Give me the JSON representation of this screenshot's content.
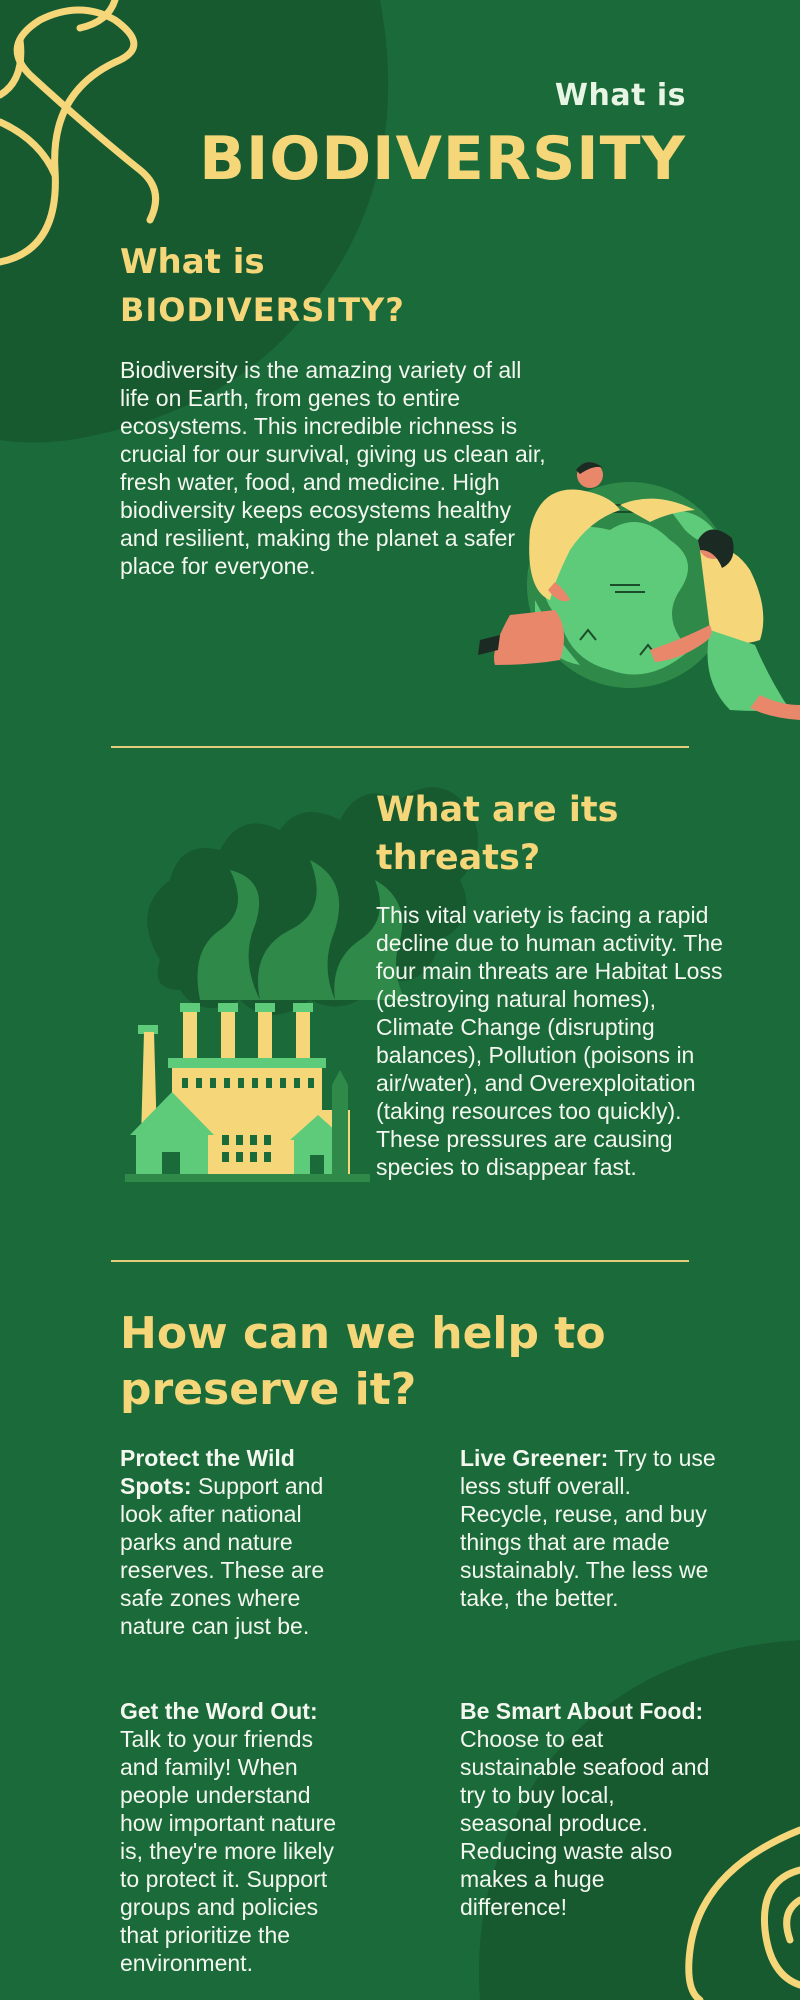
{
  "header": {
    "eyebrow": "What is",
    "title": "BIODIVERSITY"
  },
  "section_what": {
    "heading_line1": "What is",
    "heading_line2": "BIODIVERSITY?",
    "body": "Biodiversity is the amazing variety of all life on Earth, from genes to entire ecosystems. This incredible richness is crucial for our survival, giving us clean air, fresh water, food, and medicine. High biodiversity keeps ecosystems healthy and resilient, making the planet a safer place for everyone."
  },
  "section_threats": {
    "heading": "What are its threats?",
    "body": "This vital variety is facing a rapid decline due to human activity. The four main threats are Habitat Loss (destroying natural homes), Climate Change (disrupting balances), Pollution (poisons in air/water), and Overexploitation (taking resources too quickly). These pressures are causing species to disappear fast."
  },
  "section_help": {
    "heading": "How can we help to preserve it?",
    "tips": [
      {
        "lead": "Protect the Wild Spots:",
        "text": " Support and look after national parks and nature reserves. These are safe zones where nature can just be."
      },
      {
        "lead": "Live Greener:",
        "text": " Try to use less stuff overall. Recycle, reuse, and buy things that are made sustainably. The less we take, the better."
      },
      {
        "lead": "Get the Word Out:",
        "text": " Talk to your friends and family! When people understand how important nature is, they're more likely to protect it. Support groups and policies that prioritize the environment."
      },
      {
        "lead": "Be Smart About Food:",
        "text": " Choose to eat sustainable seafood and try to buy local, seasonal produce. Reducing waste also makes a huge difference!"
      }
    ]
  },
  "colors": {
    "background": "#1b6b3a",
    "dark_green": "#175a30",
    "accent_yellow": "#f5d77a",
    "light_green": "#5ecb7a",
    "text": "#f3f7ef"
  },
  "icons": [
    "globe-people-illustration",
    "factory-pollution-illustration",
    "yellow-swirl-decoration"
  ]
}
